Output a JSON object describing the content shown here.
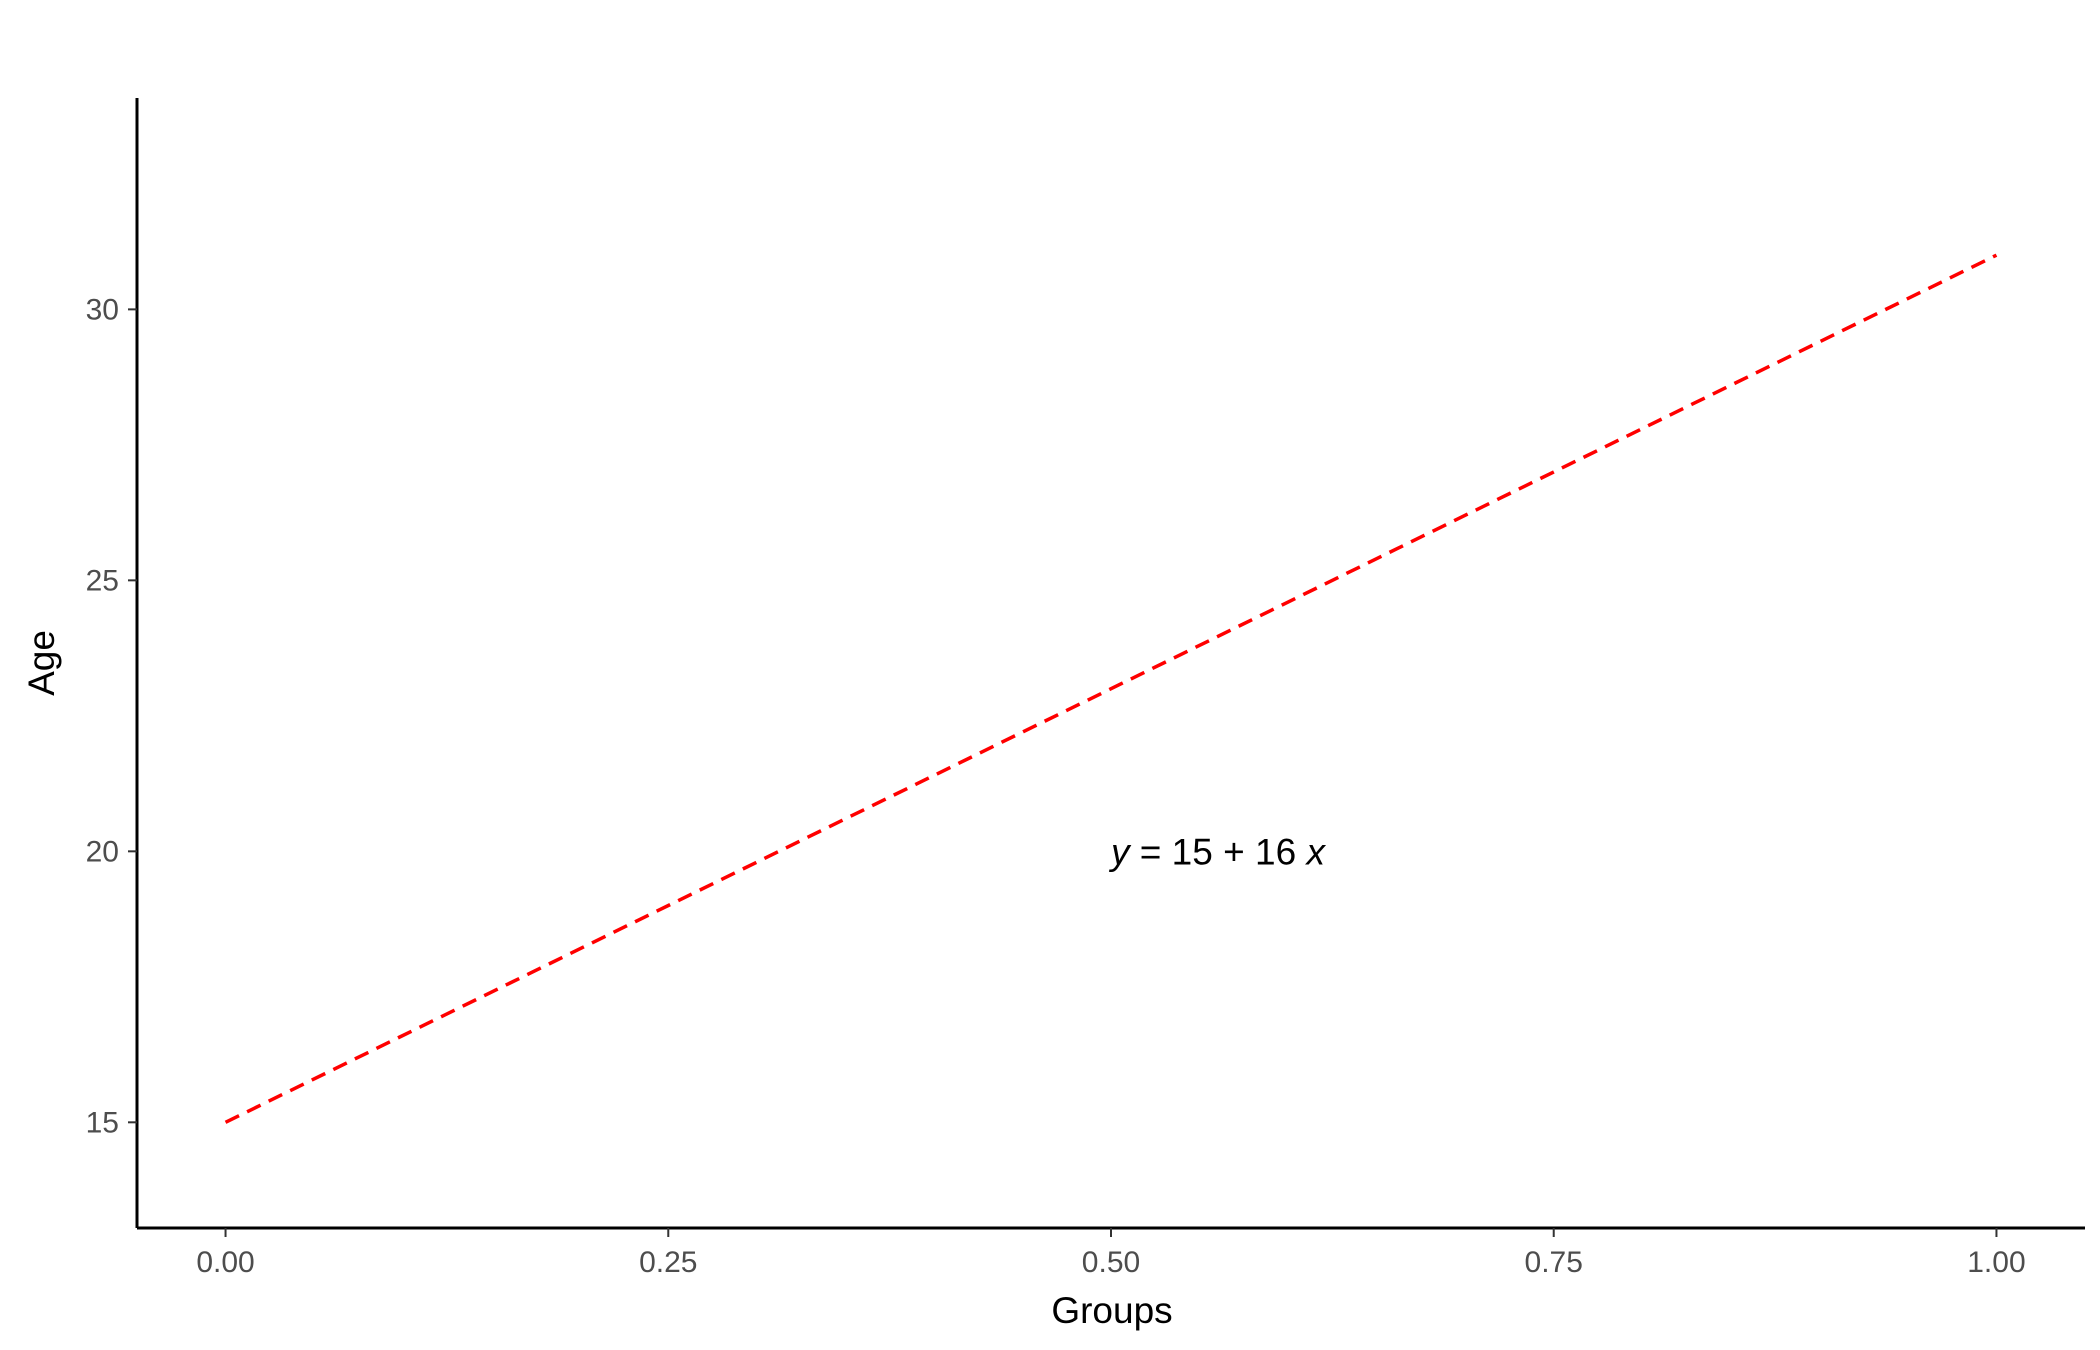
{
  "chart_data": {
    "type": "line",
    "title": "",
    "xlabel": "Groups",
    "ylabel": "Age",
    "xlim": [
      -0.05,
      1.05
    ],
    "ylim": [
      13.05,
      33.9
    ],
    "x_ticks": [
      0,
      0.25,
      0.5,
      0.75,
      1
    ],
    "x_tick_labels": [
      "0.00",
      "0.25",
      "0.50",
      "0.75",
      "1.00"
    ],
    "y_ticks": [
      15,
      20,
      25,
      30
    ],
    "y_tick_labels": [
      "15",
      "20",
      "25",
      "30"
    ],
    "grid": false,
    "legend": "none",
    "series": [
      {
        "x": [
          0,
          1
        ],
        "y": [
          15,
          31
        ],
        "color": "#ff0000",
        "line_style": "dashed"
      }
    ],
    "annotations": [
      {
        "x": 0.5,
        "y": 20,
        "parts": [
          {
            "text": "y",
            "italic": true
          },
          {
            "text": " = 15 + 16 ",
            "italic": false
          },
          {
            "text": "x",
            "italic": true
          }
        ]
      }
    ]
  }
}
